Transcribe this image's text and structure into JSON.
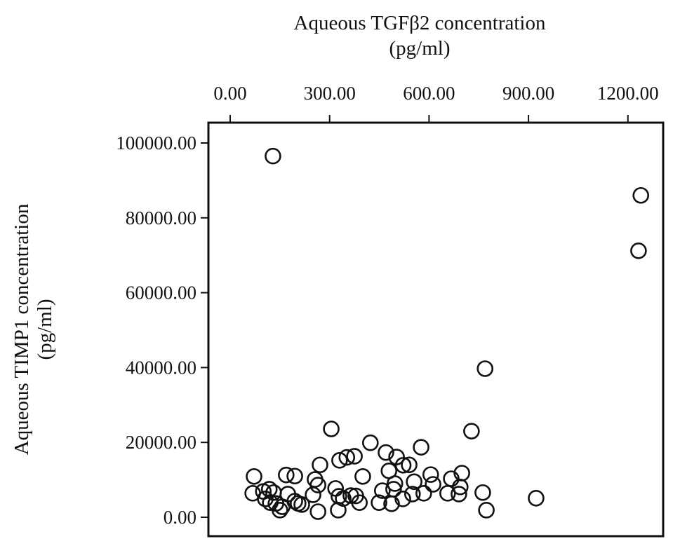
{
  "chart_data": {
    "type": "scatter",
    "xlabel_line1": "Aqueous TGFβ2  concentration",
    "xlabel_line2": "(pg/ml)",
    "ylabel_line1": "Aqueous TIMP1 concentration",
    "ylabel_line2": "(pg/ml)",
    "x_axis_position": "top",
    "xlim": [
      -65,
      1310
    ],
    "ylim": [
      -5000,
      105500
    ],
    "xticks": [
      0,
      300,
      600,
      900,
      1200
    ],
    "xtick_labels": [
      "0.00",
      "300.00",
      "600.00",
      "900.00",
      "1200.00"
    ],
    "yticks": [
      0,
      20000,
      40000,
      60000,
      80000,
      100000
    ],
    "ytick_labels": [
      "0.00",
      "20000.00",
      "40000.00",
      "60000.00",
      "80000.00",
      "100000.00"
    ],
    "grid": false,
    "marker": "open-circle",
    "marker_color": "#111111",
    "points": [
      [
        129,
        96500
      ],
      [
        1239,
        86000
      ],
      [
        1232,
        71200
      ],
      [
        769,
        39700
      ],
      [
        728,
        23000
      ],
      [
        305,
        23600
      ],
      [
        423,
        19900
      ],
      [
        576,
        18700
      ],
      [
        470,
        17300
      ],
      [
        502,
        16100
      ],
      [
        330,
        15200
      ],
      [
        352,
        16000
      ],
      [
        375,
        16300
      ],
      [
        271,
        14000
      ],
      [
        540,
        14000
      ],
      [
        522,
        13900
      ],
      [
        72,
        10900
      ],
      [
        169,
        11300
      ],
      [
        195,
        11000
      ],
      [
        400,
        10900
      ],
      [
        605,
        11400
      ],
      [
        699,
        11800
      ],
      [
        667,
        10300
      ],
      [
        256,
        10100
      ],
      [
        479,
        12400
      ],
      [
        265,
        8600
      ],
      [
        318,
        7700
      ],
      [
        497,
        9000
      ],
      [
        493,
        7500
      ],
      [
        555,
        9500
      ],
      [
        612,
        8800
      ],
      [
        694,
        8100
      ],
      [
        762,
        6600
      ],
      [
        68,
        6400
      ],
      [
        100,
        6900
      ],
      [
        118,
        7500
      ],
      [
        131,
        6600
      ],
      [
        174,
        6200
      ],
      [
        106,
        4900
      ],
      [
        121,
        3900
      ],
      [
        138,
        3700
      ],
      [
        157,
        2800
      ],
      [
        150,
        1900
      ],
      [
        195,
        4300
      ],
      [
        205,
        3700
      ],
      [
        216,
        3400
      ],
      [
        250,
        6000
      ],
      [
        328,
        5600
      ],
      [
        341,
        5000
      ],
      [
        364,
        5800
      ],
      [
        379,
        5700
      ],
      [
        265,
        1500
      ],
      [
        326,
        1900
      ],
      [
        390,
        3900
      ],
      [
        449,
        3900
      ],
      [
        487,
        3600
      ],
      [
        521,
        4900
      ],
      [
        550,
        6200
      ],
      [
        584,
        6400
      ],
      [
        656,
        6400
      ],
      [
        690,
        6200
      ],
      [
        773,
        1900
      ],
      [
        923,
        5100
      ],
      [
        459,
        7100
      ]
    ]
  }
}
